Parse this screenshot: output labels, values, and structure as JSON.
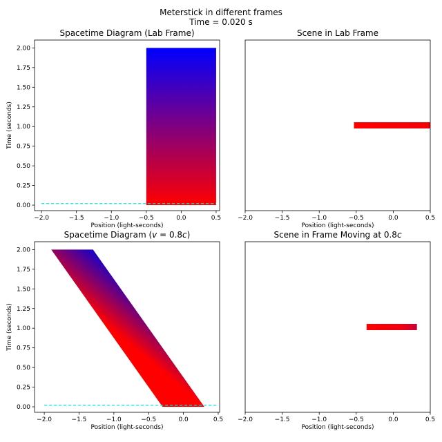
{
  "figure": {
    "title_line1": "Meterstick in different frames",
    "title_line2": "Time = 0.020 s"
  },
  "chart_data": [
    {
      "type": "area",
      "title": "Spacetime Diagram (Lab Frame)",
      "xlabel": "Position (light-seconds)",
      "ylabel": "Time (seconds)",
      "xlim": [
        -2.1,
        0.55
      ],
      "ylim": [
        -0.07,
        2.1
      ],
      "xticks": [
        -2.0,
        -1.5,
        -1.0,
        -0.5,
        0.0,
        0.5
      ],
      "yticks": [
        0.0,
        0.25,
        0.5,
        0.75,
        1.0,
        1.25,
        1.5,
        1.75,
        2.0
      ],
      "worldtube": {
        "bottom": [
          [
            -0.5,
            0.0
          ],
          [
            0.5,
            0.0
          ]
        ],
        "top": [
          [
            -0.5,
            2.0
          ],
          [
            0.5,
            2.0
          ]
        ],
        "color_bottom": "#ff0000",
        "color_top": "#0000ff"
      },
      "current_time_line": {
        "x": [
          -2.0,
          0.5
        ],
        "t": 0.02,
        "color": "#00e5e5"
      },
      "grid": false,
      "legend": "none"
    },
    {
      "type": "scatter",
      "title": "Scene in Lab Frame",
      "xlabel": "Position (light-seconds)",
      "xlim": [
        -2.0,
        0.5
      ],
      "ylim": [
        0.0,
        2.0
      ],
      "xticks": [
        -2.0,
        -1.5,
        -1.0,
        -0.5,
        0.0,
        0.5
      ],
      "show_yticks": false,
      "stick": {
        "x_start": -0.53,
        "x_end": 0.5,
        "y": 1.0,
        "color_left": "#ff0000",
        "color_right": "#f00008"
      },
      "grid": false,
      "legend": "none"
    },
    {
      "type": "area",
      "title": "Spacetime Diagram (v = 0.8c)",
      "xlabel": "Position (light-seconds)",
      "ylabel": "Time (seconds)",
      "xlim": [
        -2.14,
        0.52
      ],
      "ylim": [
        -0.07,
        2.1
      ],
      "xticks": [
        -2.0,
        -1.5,
        -1.0,
        -0.5,
        0.0,
        0.5
      ],
      "yticks": [
        0.0,
        0.25,
        0.5,
        0.75,
        1.0,
        1.25,
        1.5,
        1.75,
        2.0
      ],
      "worldtube": {
        "bottom": [
          [
            -0.3,
            0.0
          ],
          [
            0.3,
            0.0
          ]
        ],
        "top": [
          [
            -1.9,
            2.0
          ],
          [
            -1.3,
            2.0
          ]
        ],
        "color_left": "#ff0000",
        "color_right": "#0000ff"
      },
      "current_time_line": {
        "x": [
          -2.0,
          0.5
        ],
        "t": 0.02,
        "color": "#00e5e5"
      },
      "grid": false,
      "legend": "none"
    },
    {
      "type": "scatter",
      "title": "Scene in Frame Moving at 0.8c",
      "xlabel": "Position (light-seconds)",
      "xlim": [
        -2.0,
        0.5
      ],
      "ylim": [
        0.0,
        2.0
      ],
      "xticks": [
        -2.0,
        -1.5,
        -1.0,
        -0.5,
        0.0,
        0.5
      ],
      "show_yticks": false,
      "stick": {
        "x_start": -0.36,
        "x_end": 0.32,
        "y": 1.0,
        "color_left": "#ff0000",
        "color_right": "#d00030"
      },
      "grid": false,
      "legend": "none"
    }
  ]
}
